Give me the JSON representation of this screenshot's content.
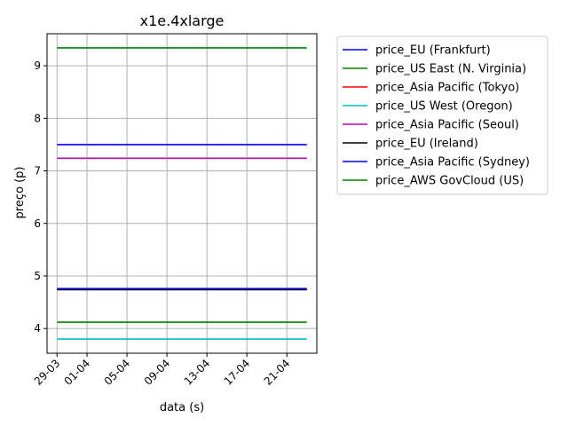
{
  "chart_data": {
    "type": "line",
    "title": "x1e.4xlarge",
    "xlabel": "data (s)",
    "ylabel": "preço (p)",
    "x_start": "2018-03-29",
    "x_end": "2018-04-23",
    "xlim": [
      "2018-03-28",
      "2018-04-24"
    ],
    "ylim": [
      3.53,
      9.61
    ],
    "x_ticks": [
      {
        "date": "2018-03-29",
        "label": "29-03"
      },
      {
        "date": "2018-04-01",
        "label": "01-04"
      },
      {
        "date": "2018-04-05",
        "label": "05-04"
      },
      {
        "date": "2018-04-09",
        "label": "09-04"
      },
      {
        "date": "2018-04-13",
        "label": "13-04"
      },
      {
        "date": "2018-04-17",
        "label": "17-04"
      },
      {
        "date": "2018-04-21",
        "label": "21-04"
      }
    ],
    "y_ticks": [
      {
        "value": 4,
        "label": "4"
      },
      {
        "value": 5,
        "label": "5"
      },
      {
        "value": 6,
        "label": "6"
      },
      {
        "value": 7,
        "label": "7"
      },
      {
        "value": 8,
        "label": "8"
      },
      {
        "value": 9,
        "label": "9"
      }
    ],
    "grid": true,
    "legend_position": "outside-right",
    "series": [
      {
        "name": "price_EU (Frankfurt)",
        "color": "#0000ff",
        "value": 7.5
      },
      {
        "name": "price_US East (N. Virginia)",
        "color": "#008000",
        "value": 9.34
      },
      {
        "name": "price_Asia Pacific (Tokyo)",
        "color": "#ff0000",
        "value": 4.74
      },
      {
        "name": "price_US West (Oregon)",
        "color": "#00bfbf",
        "value": 3.8
      },
      {
        "name": "price_Asia Pacific (Seoul)",
        "color": "#bf00bf",
        "value": 7.24
      },
      {
        "name": "price_EU (Ireland)",
        "color": "#000000",
        "value": 4.74
      },
      {
        "name": "price_Asia Pacific (Sydney)",
        "color": "#0000ff",
        "value": 4.76
      },
      {
        "name": "price_AWS GovCloud (US)",
        "color": "#008000",
        "value": 4.12
      }
    ]
  }
}
